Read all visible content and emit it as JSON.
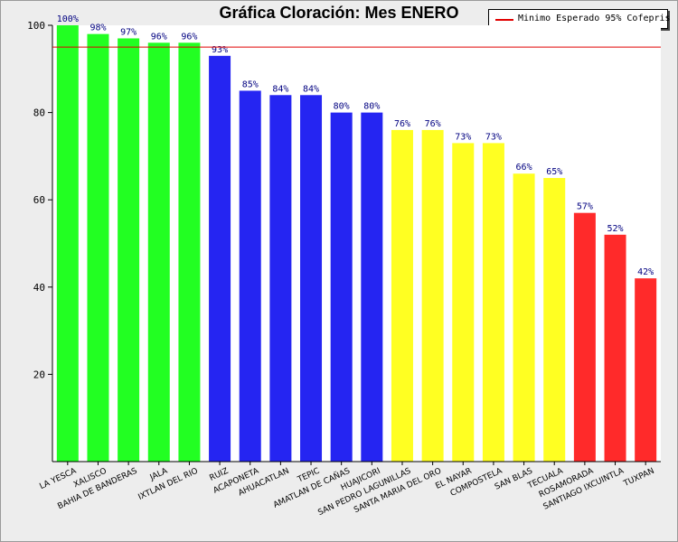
{
  "title": "Gráfica Cloración: Mes ENERO",
  "legend": {
    "label": "Minimo Esperado 95% Cofepris",
    "color": "#e00000"
  },
  "colors": {
    "green": "#22ff22",
    "blue": "#2525f2",
    "yellow": "#ffff22",
    "red": "#ff2a2a",
    "reference": "#e00000"
  },
  "chart_data": {
    "type": "bar",
    "title": "Gráfica Cloración: Mes ENERO",
    "xlabel": "",
    "ylabel": "",
    "ylim": [
      0,
      100
    ],
    "yticks": [
      20,
      40,
      60,
      80,
      100
    ],
    "grid": false,
    "reference_line": {
      "name": "Minimo Esperado 95% Cofepris",
      "value": 95
    },
    "categories": [
      "LA YESCA",
      "XALISCO",
      "BAHIA DE BANDERAS",
      "JALA",
      "IXTLAN DEL RIO",
      "RUIZ",
      "ACAPONETA",
      "AHUACATLAN",
      "TEPIC",
      "AMATLAN DE CAÑAS",
      "HUAJICORI",
      "SAN PEDRO LAGUNILLAS",
      "SANTA MARIA DEL ORO",
      "EL NAYAR",
      "COMPOSTELA",
      "SAN BLAS",
      "TECUALA",
      "ROSAMORADA",
      "SANTIAGO IXCUINTLA",
      "TUXPAN"
    ],
    "values": [
      100,
      98,
      97,
      96,
      96,
      93,
      85,
      84,
      84,
      80,
      80,
      76,
      76,
      73,
      73,
      66,
      65,
      57,
      52,
      42
    ],
    "data_labels": [
      "100%",
      "98%",
      "97%",
      "96%",
      "96%",
      "93%",
      "85%",
      "84%",
      "84%",
      "80%",
      "80%",
      "76%",
      "76%",
      "73%",
      "73%",
      "66%",
      "65%",
      "57%",
      "52%",
      "42%"
    ],
    "bar_colors": [
      "green",
      "green",
      "green",
      "green",
      "green",
      "blue",
      "blue",
      "blue",
      "blue",
      "blue",
      "blue",
      "yellow",
      "yellow",
      "yellow",
      "yellow",
      "yellow",
      "yellow",
      "red",
      "red",
      "red"
    ]
  }
}
